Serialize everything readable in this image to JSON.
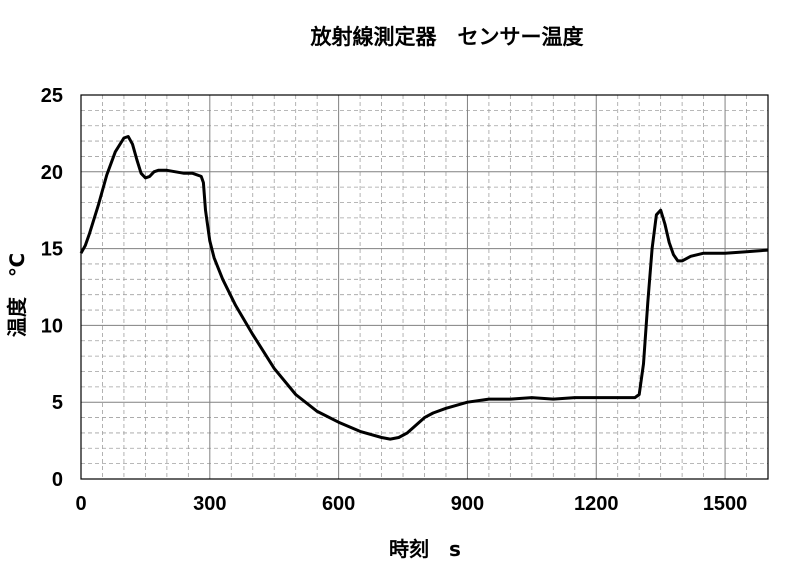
{
  "chart_data": {
    "type": "line",
    "title": "放射線測定器　センサー温度",
    "xlabel": "時刻　s",
    "ylabel": "温度　℃",
    "xlim": [
      0,
      1600
    ],
    "ylim": [
      0,
      25
    ],
    "x_ticks": [
      "0",
      "300",
      "600",
      "900",
      "1200",
      "1500"
    ],
    "y_ticks": [
      "0",
      "5",
      "10",
      "15",
      "20",
      "25"
    ],
    "grid": "major solid vertical and horizontal lines; minor dashed lines",
    "legend": "none",
    "line_color": "#000000",
    "series": [
      {
        "x": [
          0,
          10,
          20,
          40,
          60,
          80,
          100,
          110,
          120,
          130,
          140,
          150,
          160,
          170,
          180,
          190,
          200,
          220,
          240,
          260,
          280,
          285,
          290,
          300,
          310,
          330,
          360,
          400,
          450,
          500,
          550,
          600,
          650,
          700,
          720,
          740,
          760,
          780,
          800,
          820,
          850,
          900,
          950,
          1000,
          1050,
          1100,
          1150,
          1200,
          1250,
          1290,
          1300,
          1310,
          1320,
          1330,
          1340,
          1350,
          1360,
          1370,
          1380,
          1390,
          1400,
          1420,
          1450,
          1500,
          1550,
          1600
        ],
        "y": [
          14.7,
          15.2,
          16.0,
          17.8,
          19.8,
          21.3,
          22.2,
          22.3,
          21.8,
          20.8,
          19.9,
          19.6,
          19.7,
          20.0,
          20.1,
          20.1,
          20.1,
          20.0,
          19.9,
          19.9,
          19.7,
          19.3,
          17.5,
          15.5,
          14.4,
          13.0,
          11.3,
          9.4,
          7.2,
          5.5,
          4.4,
          3.7,
          3.1,
          2.7,
          2.6,
          2.7,
          3.0,
          3.5,
          4.0,
          4.3,
          4.6,
          5.0,
          5.2,
          5.2,
          5.3,
          5.2,
          5.3,
          5.3,
          5.3,
          5.3,
          5.5,
          7.5,
          11.5,
          15.0,
          17.2,
          17.5,
          16.6,
          15.4,
          14.6,
          14.2,
          14.2,
          14.5,
          14.7,
          14.7,
          14.8,
          14.9
        ]
      }
    ]
  }
}
